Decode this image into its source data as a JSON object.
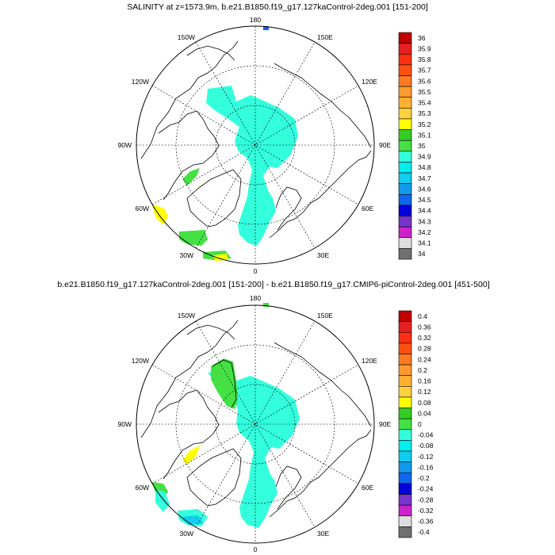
{
  "panels": [
    {
      "title": "SALINITY at z=1573.9m, b.e21.B1850.f19_g17.127kaControl-2deg.001 [151-200]",
      "lon_labels": {
        "top": "180",
        "bottom": "0",
        "left": "90W",
        "right": "90E",
        "ul1": "150W",
        "ul2": "120W",
        "ur1": "150E",
        "ur2": "120E",
        "ll1": "60W",
        "ll2": "30W",
        "lr1": "60E",
        "lr2": "30E"
      },
      "colorbar": {
        "labels": [
          "36",
          "35.9",
          "35.8",
          "35.7",
          "35.6",
          "35.5",
          "35.4",
          "35.3",
          "35.2",
          "35.1",
          "35",
          "34.9",
          "34.8",
          "34.7",
          "34.6",
          "34.5",
          "34.4",
          "34.3",
          "34.2",
          "34.1",
          "34"
        ],
        "colors": [
          "#c00000",
          "#e62020",
          "#ff3010",
          "#ff5010",
          "#ff7a20",
          "#ff9a30",
          "#ffb030",
          "#ffd040",
          "#ffff00",
          "#33cc22",
          "#44e044",
          "#33ffdd",
          "#00eeee",
          "#11ccee",
          "#1199ee",
          "#1166ee",
          "#0000dd",
          "#7733cc",
          "#cc22cc",
          "#dddddd",
          "#707070"
        ]
      }
    },
    {
      "title": "b.e21.B1850.f19_g17.127kaControl-2deg.001 [151-200] - b.e21.B1850.f19_g17.CMIP6-piControl-2deg.001 [451-500]",
      "lon_labels": {
        "top": "180",
        "bottom": "0",
        "left": "90W",
        "right": "90E",
        "ul1": "150W",
        "ul2": "120W",
        "ur1": "150E",
        "ur2": "120E",
        "ll1": "60W",
        "ll2": "30W",
        "lr1": "60E",
        "lr2": "30E"
      },
      "colorbar": {
        "labels": [
          "0.4",
          "0.36",
          "0.32",
          "0.28",
          "0.24",
          "0.2",
          "0.16",
          "0.12",
          "0.08",
          "0.04",
          "0",
          "-0.04",
          "-0.08",
          "-0.12",
          "-0.16",
          "-0.2",
          "-0.24",
          "-0.28",
          "-0.32",
          "-0.36",
          "-0.4"
        ],
        "colors": [
          "#c00000",
          "#e62020",
          "#ff3010",
          "#ff5010",
          "#ff7a20",
          "#ff9a30",
          "#ffb030",
          "#ffd040",
          "#ffff00",
          "#33cc22",
          "#44e044",
          "#33ffdd",
          "#00eeee",
          "#11ccee",
          "#1199ee",
          "#1166ee",
          "#0000dd",
          "#7733cc",
          "#cc22cc",
          "#dddddd",
          "#707070"
        ]
      }
    }
  ],
  "colors": {
    "cyan_field": "#33ffdd",
    "green_field": "#44e044",
    "yellow_field": "#ffff00",
    "blue_field": "#1166ee",
    "land_line": "#000000",
    "grid_line": "#000000"
  }
}
